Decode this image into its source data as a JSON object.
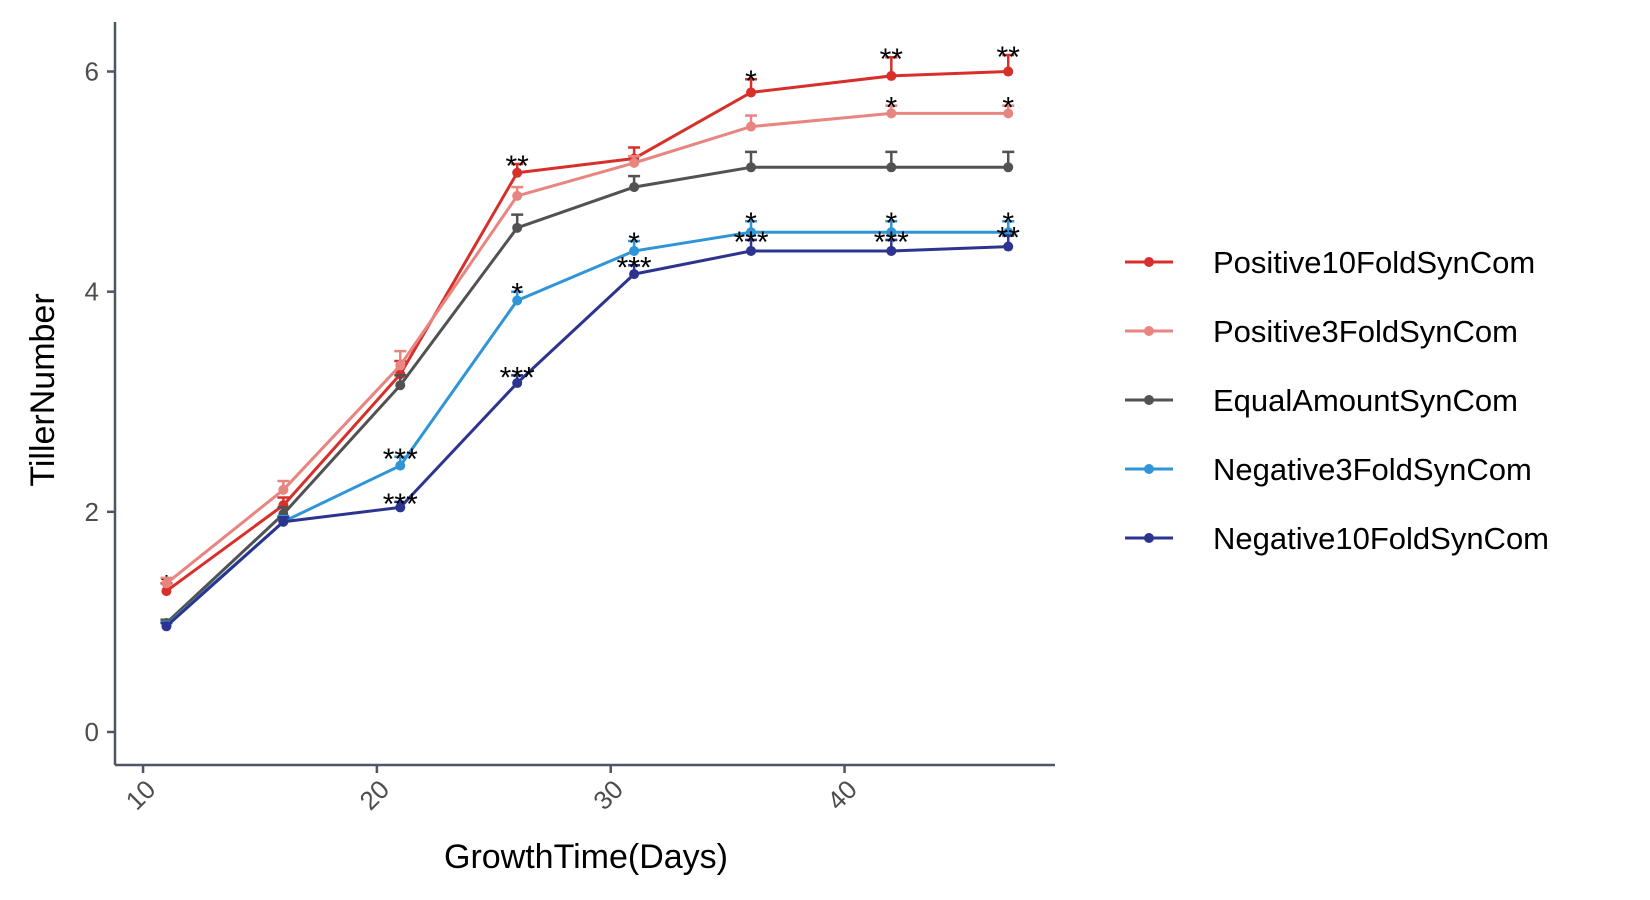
{
  "chart_data": {
    "type": "line",
    "title": "",
    "xlabel": "GrowthTime(Days)",
    "ylabel": "TillerNumber",
    "xlim": [
      8.8,
      49
    ],
    "ylim": [
      -0.3,
      6.45
    ],
    "xticks": [
      10,
      20,
      30,
      40
    ],
    "yticks": [
      0,
      2,
      4,
      6
    ],
    "x": [
      11,
      16,
      21,
      26,
      31,
      36,
      42,
      47
    ],
    "grid": false,
    "legend_position": "right",
    "series": [
      {
        "name": "Positive10FoldSynCom",
        "color": "#d7302b",
        "values": [
          1.28,
          2.06,
          3.25,
          5.08,
          5.21,
          5.81,
          5.96,
          6.0
        ],
        "errors": [
          0.07,
          0.07,
          0.12,
          0.08,
          0.1,
          0.12,
          0.17,
          0.15
        ],
        "significance": [
          "*",
          "",
          "",
          "**",
          "",
          "*",
          "**",
          "**"
        ]
      },
      {
        "name": "Positive3FoldSynCom",
        "color": "#e98580",
        "values": [
          1.35,
          2.2,
          3.33,
          4.87,
          5.17,
          5.5,
          5.62,
          5.62
        ],
        "errors": [
          0.05,
          0.08,
          0.13,
          0.08,
          0.06,
          0.1,
          0.07,
          0.07
        ],
        "significance": [
          "",
          "",
          "",
          "",
          "",
          "",
          "*",
          "*"
        ]
      },
      {
        "name": "EqualAmountSynCom",
        "color": "#525252",
        "values": [
          0.99,
          1.98,
          3.15,
          4.58,
          4.95,
          5.13,
          5.13,
          5.13
        ],
        "errors": [
          0.03,
          0.06,
          0.09,
          0.12,
          0.1,
          0.14,
          0.14,
          0.14
        ],
        "significance": [
          "",
          "",
          "",
          "",
          "",
          "",
          "",
          ""
        ]
      },
      {
        "name": "Negative3FoldSynCom",
        "color": "#2f95d6",
        "values": [
          0.97,
          1.91,
          2.42,
          3.92,
          4.37,
          4.54,
          4.54,
          4.54
        ],
        "errors": [
          0.03,
          0.05,
          0.08,
          0.08,
          0.09,
          0.1,
          0.1,
          0.1
        ],
        "significance": [
          "",
          "",
          "***",
          "*",
          "*",
          "*",
          "*",
          "*"
        ]
      },
      {
        "name": "Negative10FoldSynCom",
        "color": "#2c348f",
        "values": [
          0.96,
          1.91,
          2.04,
          3.17,
          4.16,
          4.37,
          4.37,
          4.41
        ],
        "errors": [
          0.03,
          0.04,
          0.05,
          0.07,
          0.08,
          0.1,
          0.1,
          0.1
        ],
        "significance": [
          "",
          "",
          "***",
          "***",
          "***",
          "***",
          "***",
          "**"
        ]
      }
    ]
  }
}
